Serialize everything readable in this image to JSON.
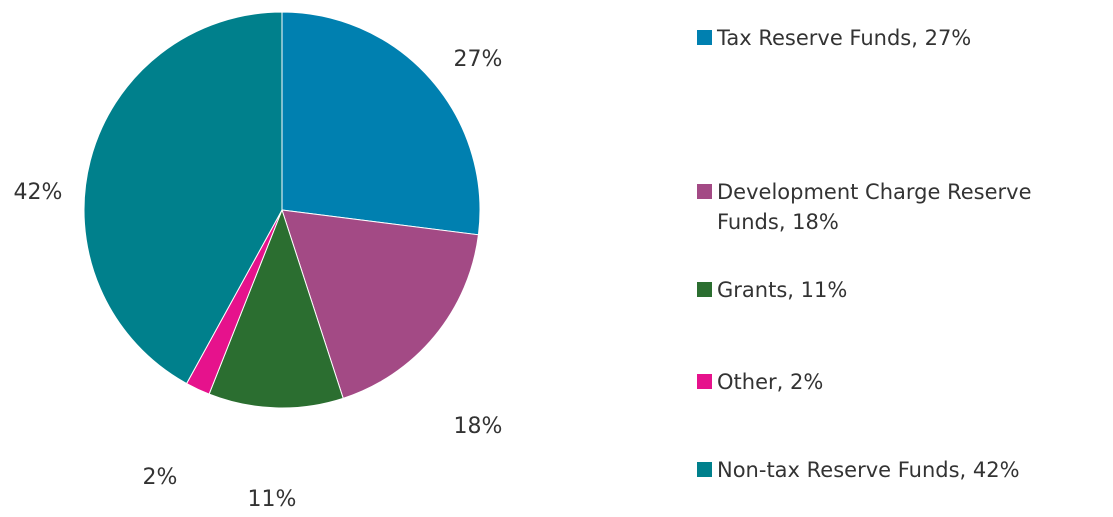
{
  "chart_data": {
    "type": "pie",
    "categories": [
      "Tax Reserve Funds, 27%",
      "Development Charge Reserve Funds, 18%",
      "Grants, 11%",
      "Other, 2%",
      "Non-tax Reserve Funds, 42%"
    ],
    "values": [
      27,
      18,
      11,
      2,
      42
    ],
    "value_labels": [
      "27%",
      "18%",
      "11%",
      "2%",
      "42%"
    ],
    "colors": [
      "#0080b0",
      "#a34a85",
      "#2b6e30",
      "#e6128c",
      "#00808c"
    ],
    "legend": "right"
  }
}
